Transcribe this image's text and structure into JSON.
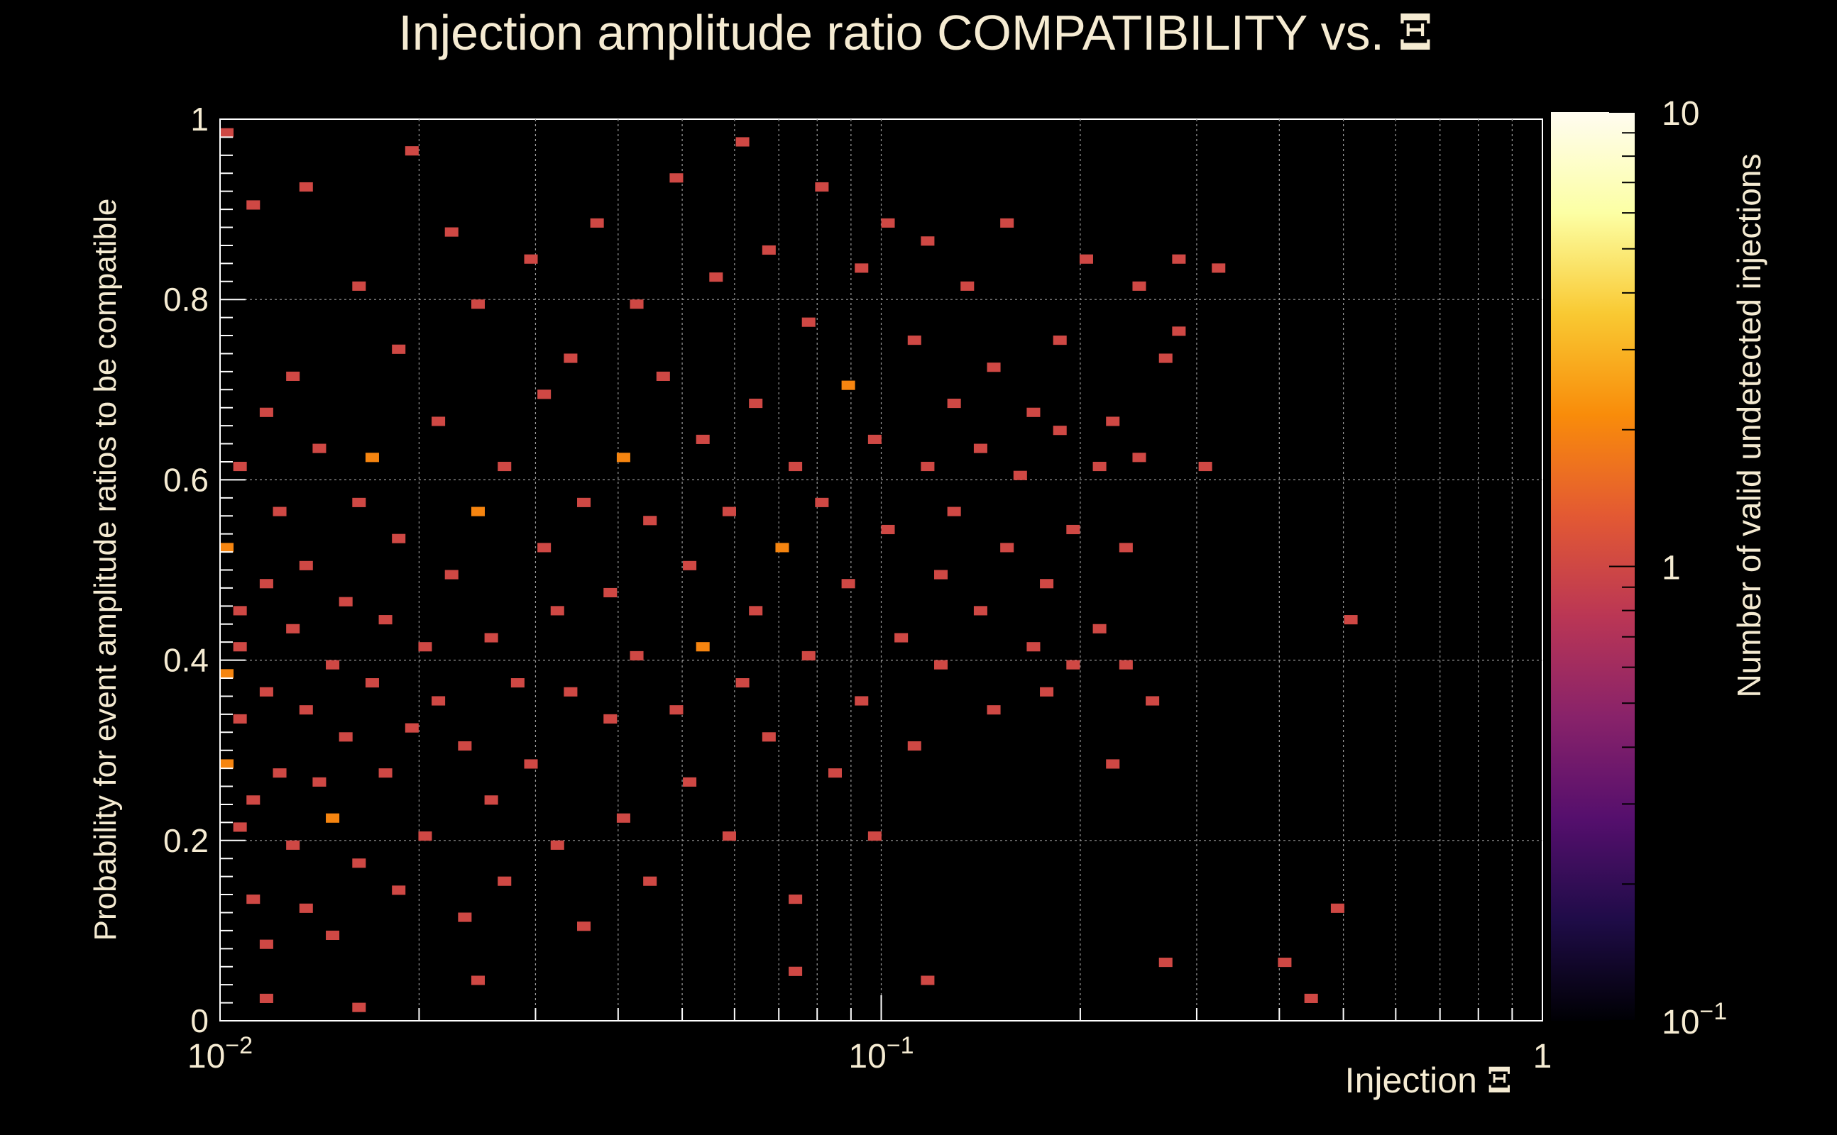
{
  "chart_data": {
    "type": "heatmap",
    "title": "Injection amplitude ratio COMPATIBILITY vs.",
    "title_symbol": "Ξ",
    "xlabel": "Injection",
    "xlabel_symbol": "Ξ",
    "ylabel": "Probability for event amplitude ratios to be compatible",
    "zlabel": "Number of valid undetected injections",
    "x_scale": "log",
    "x_range": [
      0.01,
      1
    ],
    "y_range": [
      0,
      1
    ],
    "z_scale": "log",
    "z_range": [
      0.1,
      10
    ],
    "x_ticks": [
      {
        "value": 0.01,
        "base": "10",
        "exp": "−2"
      },
      {
        "value": 0.1,
        "base": "10",
        "exp": "−1"
      },
      {
        "value": 1,
        "base": "1",
        "exp": ""
      }
    ],
    "y_ticks": [
      "0",
      "0.2",
      "0.4",
      "0.6",
      "0.8",
      "1"
    ],
    "z_ticks": [
      {
        "value": 10,
        "base": "10",
        "exp": ""
      },
      {
        "value": 1,
        "base": "1",
        "exp": ""
      },
      {
        "value": 0.1,
        "base": "10",
        "exp": "−1"
      }
    ],
    "grid": true,
    "colors": {
      "background": "#000000",
      "text": "#f5ebd2",
      "grid": "#9a9a9a",
      "axis": "#ffffff",
      "colormap": [
        "#000004",
        "#1f0c48",
        "#550f6d",
        "#88226a",
        "#ba3655",
        "#e35933",
        "#f98c0a",
        "#f9c932",
        "#fcffa4",
        "#fffcf0"
      ]
    },
    "x_bins": 100,
    "y_bins": 100,
    "bin_description": "Counts per (log10 Ξ, probability) bin; most occupied bins hold 1 entry, a few hold 2",
    "points": [
      [
        0.0101,
        0.985,
        1
      ],
      [
        0.0102,
        0.52,
        2
      ],
      [
        0.0103,
        0.29,
        2
      ],
      [
        0.0104,
        0.38,
        2
      ],
      [
        0.0105,
        0.21,
        1
      ],
      [
        0.0106,
        0.41,
        1
      ],
      [
        0.0107,
        0.33,
        1
      ],
      [
        0.0108,
        0.45,
        1
      ],
      [
        0.0109,
        0.61,
        1
      ],
      [
        0.011,
        0.13,
        1
      ],
      [
        0.0112,
        0.24,
        1
      ],
      [
        0.0113,
        0.9,
        1
      ],
      [
        0.0115,
        0.67,
        1
      ],
      [
        0.0117,
        0.48,
        1
      ],
      [
        0.0119,
        0.36,
        1
      ],
      [
        0.012,
        0.08,
        1
      ],
      [
        0.0122,
        0.27,
        1
      ],
      [
        0.0124,
        0.56,
        1
      ],
      [
        0.0126,
        0.19,
        1
      ],
      [
        0.0128,
        0.43,
        1
      ],
      [
        0.013,
        0.71,
        1
      ],
      [
        0.0132,
        0.34,
        1
      ],
      [
        0.0134,
        0.92,
        1
      ],
      [
        0.0136,
        0.12,
        1
      ],
      [
        0.0138,
        0.5,
        1
      ],
      [
        0.014,
        0.26,
        1
      ],
      [
        0.0142,
        0.63,
        1
      ],
      [
        0.0145,
        0.39,
        1
      ],
      [
        0.0148,
        0.09,
        1
      ],
      [
        0.015,
        0.22,
        2
      ],
      [
        0.0153,
        0.46,
        1
      ],
      [
        0.0156,
        0.31,
        1
      ],
      [
        0.0159,
        0.81,
        1
      ],
      [
        0.0162,
        0.58,
        1
      ],
      [
        0.0165,
        0.17,
        1
      ],
      [
        0.0168,
        0.37,
        1
      ],
      [
        0.0171,
        0.62,
        2
      ],
      [
        0.0175,
        0.27,
        1
      ],
      [
        0.0178,
        0.44,
        1
      ],
      [
        0.0182,
        0.74,
        1
      ],
      [
        0.0186,
        0.14,
        1
      ],
      [
        0.019,
        0.53,
        1
      ],
      [
        0.0194,
        0.32,
        1
      ],
      [
        0.0198,
        0.96,
        1
      ],
      [
        0.0203,
        0.41,
        1
      ],
      [
        0.0207,
        0.2,
        1
      ],
      [
        0.0212,
        0.66,
        1
      ],
      [
        0.0217,
        0.35,
        1
      ],
      [
        0.0222,
        0.87,
        1
      ],
      [
        0.0227,
        0.49,
        1
      ],
      [
        0.0232,
        0.11,
        1
      ],
      [
        0.0238,
        0.3,
        1
      ],
      [
        0.0244,
        0.79,
        1
      ],
      [
        0.025,
        0.57,
        2
      ],
      [
        0.0256,
        0.24,
        1
      ],
      [
        0.0262,
        0.42,
        1
      ],
      [
        0.0268,
        0.15,
        1
      ],
      [
        0.0275,
        0.61,
        1
      ],
      [
        0.0282,
        0.37,
        1
      ],
      [
        0.0289,
        0.84,
        1
      ],
      [
        0.0296,
        0.28,
        1
      ],
      [
        0.0303,
        0.52,
        1
      ],
      [
        0.0311,
        0.69,
        1
      ],
      [
        0.0319,
        0.19,
        1
      ],
      [
        0.0327,
        0.45,
        1
      ],
      [
        0.0335,
        0.36,
        1
      ],
      [
        0.0344,
        0.73,
        1
      ],
      [
        0.0353,
        0.1,
        1
      ],
      [
        0.0362,
        0.58,
        1
      ],
      [
        0.0371,
        0.88,
        1
      ],
      [
        0.0381,
        0.33,
        1
      ],
      [
        0.0391,
        0.47,
        1
      ],
      [
        0.0401,
        0.62,
        2
      ],
      [
        0.0411,
        0.22,
        1
      ],
      [
        0.0422,
        0.79,
        1
      ],
      [
        0.0433,
        0.4,
        1
      ],
      [
        0.0444,
        0.55,
        1
      ],
      [
        0.0456,
        0.15,
        1
      ],
      [
        0.0468,
        0.71,
        1
      ],
      [
        0.048,
        0.34,
        1
      ],
      [
        0.0493,
        0.93,
        1
      ],
      [
        0.0506,
        0.5,
        1
      ],
      [
        0.0519,
        0.26,
        1
      ],
      [
        0.0533,
        0.64,
        1
      ],
      [
        0.0547,
        0.41,
        2
      ],
      [
        0.0561,
        0.82,
        1
      ],
      [
        0.0576,
        0.2,
        1
      ],
      [
        0.0591,
        0.57,
        1
      ],
      [
        0.0606,
        0.37,
        1
      ],
      [
        0.0622,
        0.97,
        1
      ],
      [
        0.0638,
        0.68,
        1
      ],
      [
        0.0655,
        0.45,
        1
      ],
      [
        0.0672,
        0.31,
        1
      ],
      [
        0.069,
        0.85,
        1
      ],
      [
        0.0708,
        0.52,
        2
      ],
      [
        0.0726,
        0.61,
        1
      ],
      [
        0.0745,
        0.13,
        1
      ],
      [
        0.0765,
        0.77,
        1
      ],
      [
        0.0785,
        0.4,
        1
      ],
      [
        0.0806,
        0.92,
        1
      ],
      [
        0.0827,
        0.58,
        1
      ],
      [
        0.0849,
        0.27,
        1
      ],
      [
        0.0871,
        0.7,
        2
      ],
      [
        0.0894,
        0.48,
        1
      ],
      [
        0.0917,
        0.83,
        1
      ],
      [
        0.0941,
        0.35,
        1
      ],
      [
        0.0966,
        0.64,
        1
      ],
      [
        0.0991,
        0.2,
        1
      ],
      [
        0.1017,
        0.88,
        1
      ],
      [
        0.1044,
        0.54,
        1
      ],
      [
        0.1071,
        0.42,
        1
      ],
      [
        0.1099,
        0.75,
        1
      ],
      [
        0.1128,
        0.3,
        1
      ],
      [
        0.1158,
        0.61,
        1
      ],
      [
        0.1188,
        0.86,
        1
      ],
      [
        0.1219,
        0.49,
        1
      ],
      [
        0.1251,
        0.39,
        1
      ],
      [
        0.1284,
        0.68,
        1
      ],
      [
        0.1318,
        0.57,
        1
      ],
      [
        0.1353,
        0.81,
        1
      ],
      [
        0.1388,
        0.45,
        1
      ],
      [
        0.1424,
        0.63,
        1
      ],
      [
        0.1462,
        0.34,
        1
      ],
      [
        0.15,
        0.72,
        1
      ],
      [
        0.1539,
        0.52,
        1
      ],
      [
        0.158,
        0.88,
        1
      ],
      [
        0.1621,
        0.6,
        1
      ],
      [
        0.1664,
        0.41,
        1
      ],
      [
        0.1707,
        0.67,
        1
      ],
      [
        0.1752,
        0.48,
        1
      ],
      [
        0.1798,
        0.36,
        1
      ],
      [
        0.1845,
        0.65,
        1
      ],
      [
        0.1893,
        0.75,
        1
      ],
      [
        0.1943,
        0.54,
        1
      ],
      [
        0.1994,
        0.39,
        1
      ],
      [
        0.2046,
        0.84,
        1
      ],
      [
        0.21,
        0.43,
        1
      ],
      [
        0.2155,
        0.61,
        1
      ],
      [
        0.221,
        0.28,
        1
      ],
      [
        0.227,
        0.66,
        1
      ],
      [
        0.233,
        0.52,
        1
      ],
      [
        0.239,
        0.39,
        1
      ],
      [
        0.245,
        0.81,
        1
      ],
      [
        0.251,
        0.62,
        1
      ],
      [
        0.258,
        0.35,
        1
      ],
      [
        0.265,
        0.73,
        1
      ],
      [
        0.279,
        0.84,
        1
      ],
      [
        0.288,
        0.76,
        1
      ],
      [
        0.31,
        0.61,
        1
      ],
      [
        0.32,
        0.83,
        1
      ],
      [
        0.41,
        0.064,
        1
      ],
      [
        0.48,
        0.12,
        1
      ],
      [
        0.52,
        0.44,
        1
      ],
      [
        0.27,
        0.06,
        1
      ],
      [
        0.45,
        0.025,
        1
      ],
      [
        0.118,
        0.044,
        1
      ],
      [
        0.073,
        0.055,
        1
      ],
      [
        0.024,
        0.04,
        1
      ],
      [
        0.012,
        0.02,
        1
      ],
      [
        0.016,
        0.015,
        1
      ]
    ]
  }
}
